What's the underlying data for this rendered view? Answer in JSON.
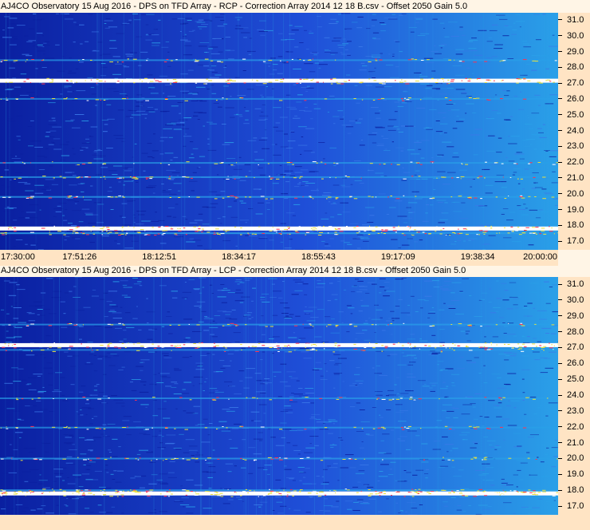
{
  "chart_data": [
    {
      "type": "heatmap",
      "title": "AJ4CO Observatory 15 Aug 2016  -  DPS on TFD Array  -  RCP  -  Correction Array 2014 12 18 B.csv  -  Offset 2050  Gain 5.0",
      "x_ticks": [
        "17:30:00",
        "17:51:26",
        "18:12:51",
        "18:34:17",
        "18:55:43",
        "19:17:09",
        "19:38:34",
        "20:00:00"
      ],
      "x_range": [
        "17:30:00",
        "20:00:00"
      ],
      "y_ticks": [
        "31.0",
        "30.0",
        "29.0",
        "28.0",
        "27.0",
        "26.0",
        "25.0",
        "24.0",
        "23.0",
        "22.0",
        "21.0",
        "20.0",
        "19.0",
        "18.0",
        "17.0"
      ],
      "y_range": [
        16.5,
        31.5
      ],
      "colors": {
        "background": "#1f4fd8",
        "low": "#0a1fa0",
        "mid": "#2aa0e8",
        "high": "#e8e040",
        "peak": "#ffffff",
        "hot": "#ff3050"
      },
      "bands": [
        {
          "freq": 27.2,
          "strength": 1.0
        },
        {
          "freq": 17.85,
          "strength": 1.0
        },
        {
          "freq": 17.55,
          "strength": 0.7
        },
        {
          "freq": 28.5,
          "strength": 0.4
        },
        {
          "freq": 22.0,
          "strength": 0.35
        },
        {
          "freq": 21.1,
          "strength": 0.45
        },
        {
          "freq": 19.85,
          "strength": 0.5
        },
        {
          "freq": 26.05,
          "strength": 0.3
        }
      ]
    },
    {
      "type": "heatmap",
      "title": "AJ4CO Observatory 15 Aug 2016  -  DPS on TFD Array  -  LCP  -  Correction Array 2014 12 18 B.csv  -  Offset 2050  Gain 5.0",
      "x_ticks": [],
      "x_range": [
        "17:30:00",
        "20:00:00"
      ],
      "y_ticks": [
        "31.0",
        "30.0",
        "29.0",
        "28.0",
        "27.0",
        "26.0",
        "25.0",
        "24.0",
        "23.0",
        "22.0",
        "21.0",
        "20.0",
        "19.0",
        "18.0",
        "17.0"
      ],
      "y_range": [
        16.5,
        31.5
      ],
      "colors": {
        "background": "#1f4fd8",
        "low": "#0a1fa0",
        "mid": "#2aa0e8",
        "high": "#e8e040",
        "peak": "#ffffff",
        "hot": "#ff3050"
      },
      "bands": [
        {
          "freq": 27.2,
          "strength": 1.0
        },
        {
          "freq": 17.85,
          "strength": 1.0
        },
        {
          "freq": 18.05,
          "strength": 0.6
        },
        {
          "freq": 28.5,
          "strength": 0.4
        },
        {
          "freq": 22.0,
          "strength": 0.35
        },
        {
          "freq": 23.85,
          "strength": 0.3
        },
        {
          "freq": 20.05,
          "strength": 0.45
        },
        {
          "freq": 26.9,
          "strength": 0.3
        }
      ]
    }
  ]
}
